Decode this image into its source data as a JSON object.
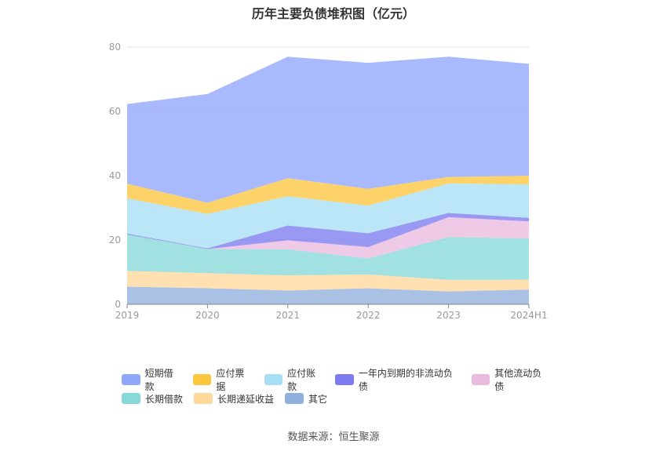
{
  "chart_data": {
    "type": "area",
    "stacked": true,
    "title": "历年主要负债堆积图（亿元）",
    "categories": [
      "2019",
      "2020",
      "2021",
      "2022",
      "2023",
      "2024H1"
    ],
    "ylim": [
      0,
      80
    ],
    "yticks": [
      0,
      20,
      40,
      60,
      80
    ],
    "grid": true,
    "legend_position": "bottom",
    "series": [
      {
        "name": "其它",
        "color": "#8fb0dd",
        "values": [
          5.5,
          5.0,
          4.3,
          5.0,
          4.0,
          4.6
        ]
      },
      {
        "name": "长期递延收益",
        "color": "#ffd89b",
        "values": [
          4.9,
          4.7,
          4.7,
          4.3,
          3.6,
          3.1
        ]
      },
      {
        "name": "长期借款",
        "color": "#87d9d9",
        "values": [
          11.3,
          7.5,
          8.1,
          5.0,
          13.3,
          12.8
        ]
      },
      {
        "name": "其他流动负债",
        "color": "#e9bbdf",
        "values": [
          0,
          0,
          2.8,
          3.5,
          6.2,
          5.3
        ]
      },
      {
        "name": "一年内到期的非流动负债",
        "color": "#7c7bef",
        "values": [
          0.3,
          0.2,
          4.6,
          4.3,
          1.3,
          1.1
        ]
      },
      {
        "name": "应付账款",
        "color": "#a6dff6",
        "values": [
          11.0,
          10.7,
          9.1,
          8.6,
          9.2,
          10.4
        ]
      },
      {
        "name": "应付票据",
        "color": "#fcc73f",
        "values": [
          4.5,
          3.5,
          5.6,
          5.2,
          2.0,
          2.7
        ]
      },
      {
        "name": "短期借款",
        "color": "#8fa6fb",
        "values": [
          24.8,
          33.8,
          37.8,
          39.2,
          37.4,
          34.8
        ]
      }
    ],
    "source": "数据来源：恒生聚源"
  },
  "legend_rows": [
    [
      {
        "name": "短期借款",
        "color": "#8fa6fb"
      },
      {
        "name": "应付票据",
        "color": "#fcc73f"
      },
      {
        "name": "应付账款",
        "color": "#a6dff6"
      },
      {
        "name": "一年内到期的非流动负债",
        "color": "#7c7bef"
      },
      {
        "name": "其他流动负债",
        "color": "#e9bbdf"
      }
    ],
    [
      {
        "name": "长期借款",
        "color": "#87d9d9"
      },
      {
        "name": "长期递延收益",
        "color": "#ffd89b"
      },
      {
        "name": "其它",
        "color": "#8fb0dd"
      }
    ]
  ]
}
